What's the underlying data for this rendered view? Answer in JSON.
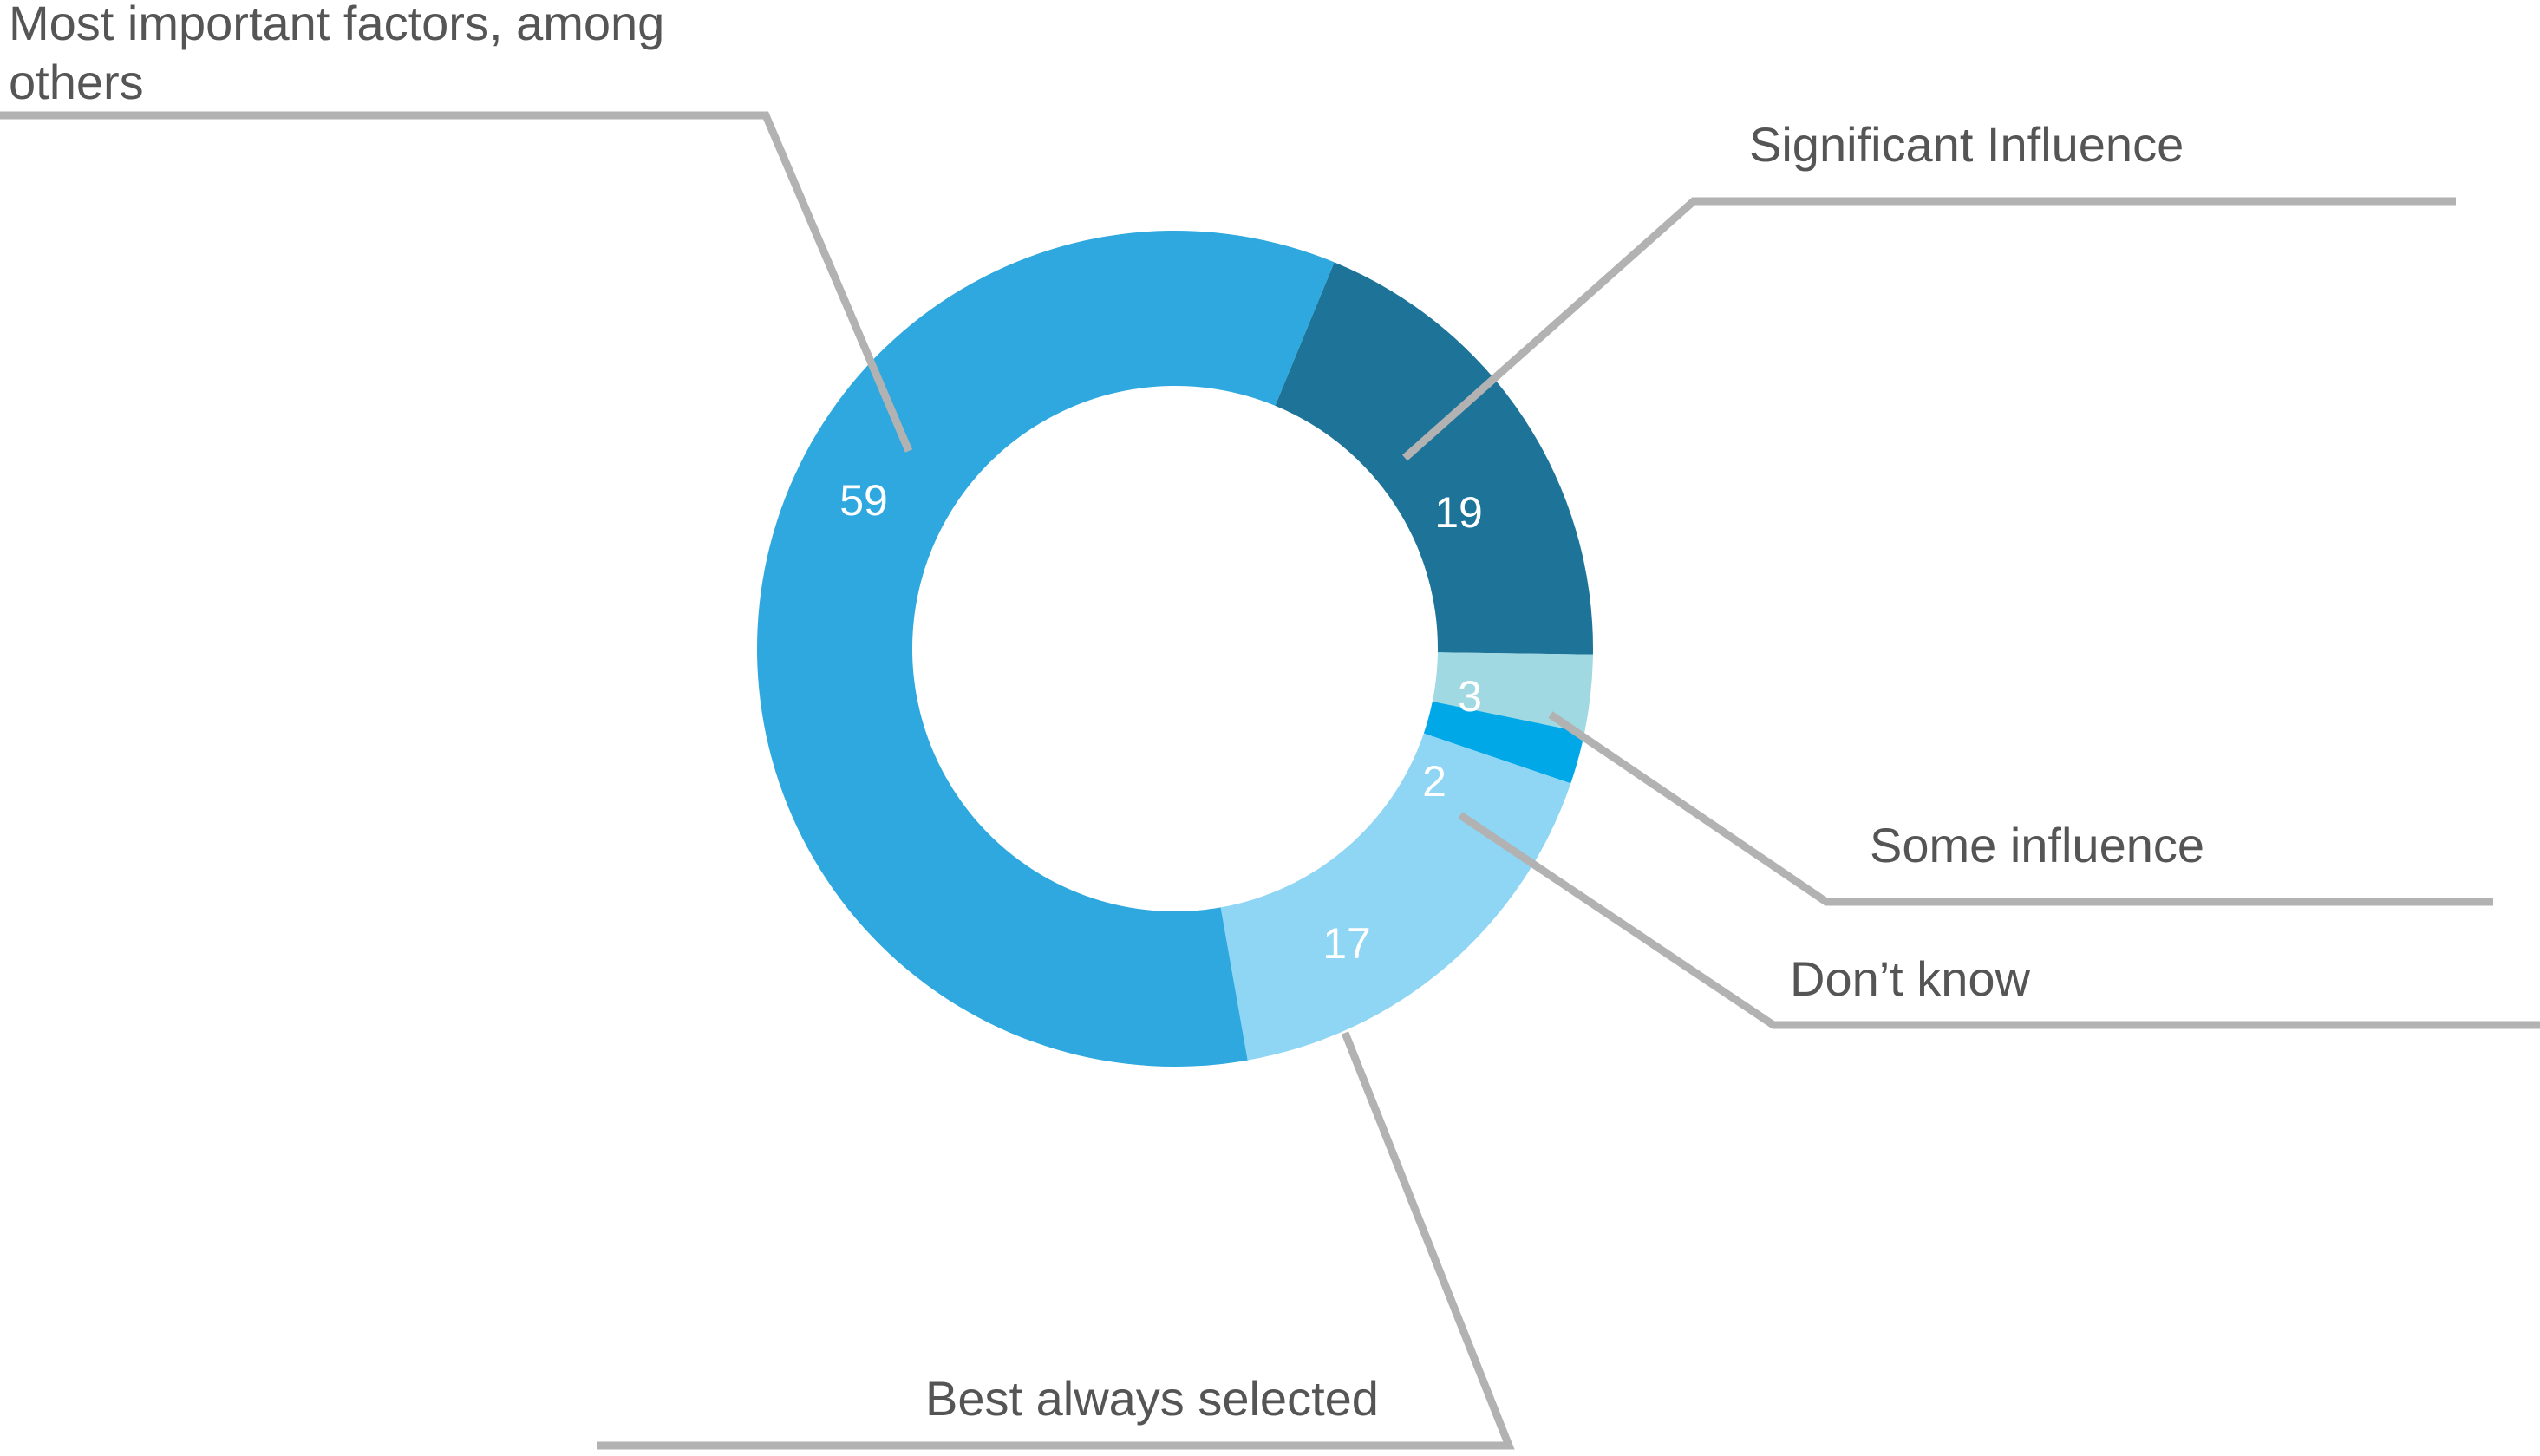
{
  "chart_data": {
    "type": "pie",
    "variant": "donut",
    "categories": [
      "Significant Influence",
      "Some influence",
      "Don’t know",
      "Best always selected",
      "Most important factors, among others"
    ],
    "values": [
      19,
      3,
      2,
      17,
      59
    ],
    "value_labels": [
      "19",
      "3",
      "2",
      "17",
      "59"
    ],
    "colors": [
      "#1e7399",
      "#a0d9e2",
      "#00a8e8",
      "#8fd5f4",
      "#2ea8de"
    ],
    "title": "",
    "legend": "callout-labels",
    "callout_labels": {
      "most_important": [
        "Most important factors, among",
        "others"
      ],
      "significant": "Significant Influence",
      "some": "Some influence",
      "dont_know": "Don’t know",
      "best": "Best always selected"
    }
  }
}
